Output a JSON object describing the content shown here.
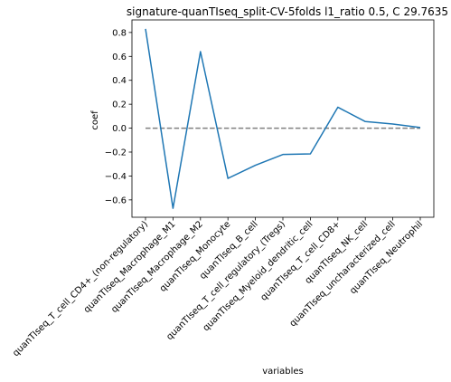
{
  "chart_data": {
    "type": "line",
    "title": "signature-quanTIseq_split-CV-5folds l1_ratio 0.5, C 29.7635",
    "xlabel": "variables",
    "ylabel": "coef",
    "categories": [
      "quanTIseq_T_cell_CD4+_(non-regulatory)",
      "quanTIseq_Macrophage_M1",
      "quanTIseq_Macrophage_M2",
      "quanTIseq_Monocyte",
      "quanTIseq_B_cell",
      "quanTIseq_T_cell_regulatory_(Tregs)",
      "quanTIseq_Myeloid_dendritic_cell",
      "quanTIseq_T_cell_CD8+",
      "quanTIseq_NK_cell",
      "quanTIseq_uncharacterized_cell",
      "quanTIseq_Neutrophil"
    ],
    "values": [
      0.83,
      -0.67,
      0.64,
      -0.42,
      -0.31,
      -0.22,
      -0.215,
      0.175,
      0.055,
      0.035,
      0.005
    ],
    "yticks": [
      "−0.6",
      "−0.4",
      "−0.2",
      "0.0",
      "0.2",
      "0.4",
      "0.6",
      "0.8"
    ],
    "ytick_values": [
      -0.6,
      -0.4,
      -0.2,
      0.0,
      0.2,
      0.4,
      0.6,
      0.8
    ],
    "ylim": [
      -0.745,
      0.905
    ],
    "reference_line": 0,
    "grid": false,
    "line_color": "#1f77b4",
    "reference_color": "#808080"
  }
}
